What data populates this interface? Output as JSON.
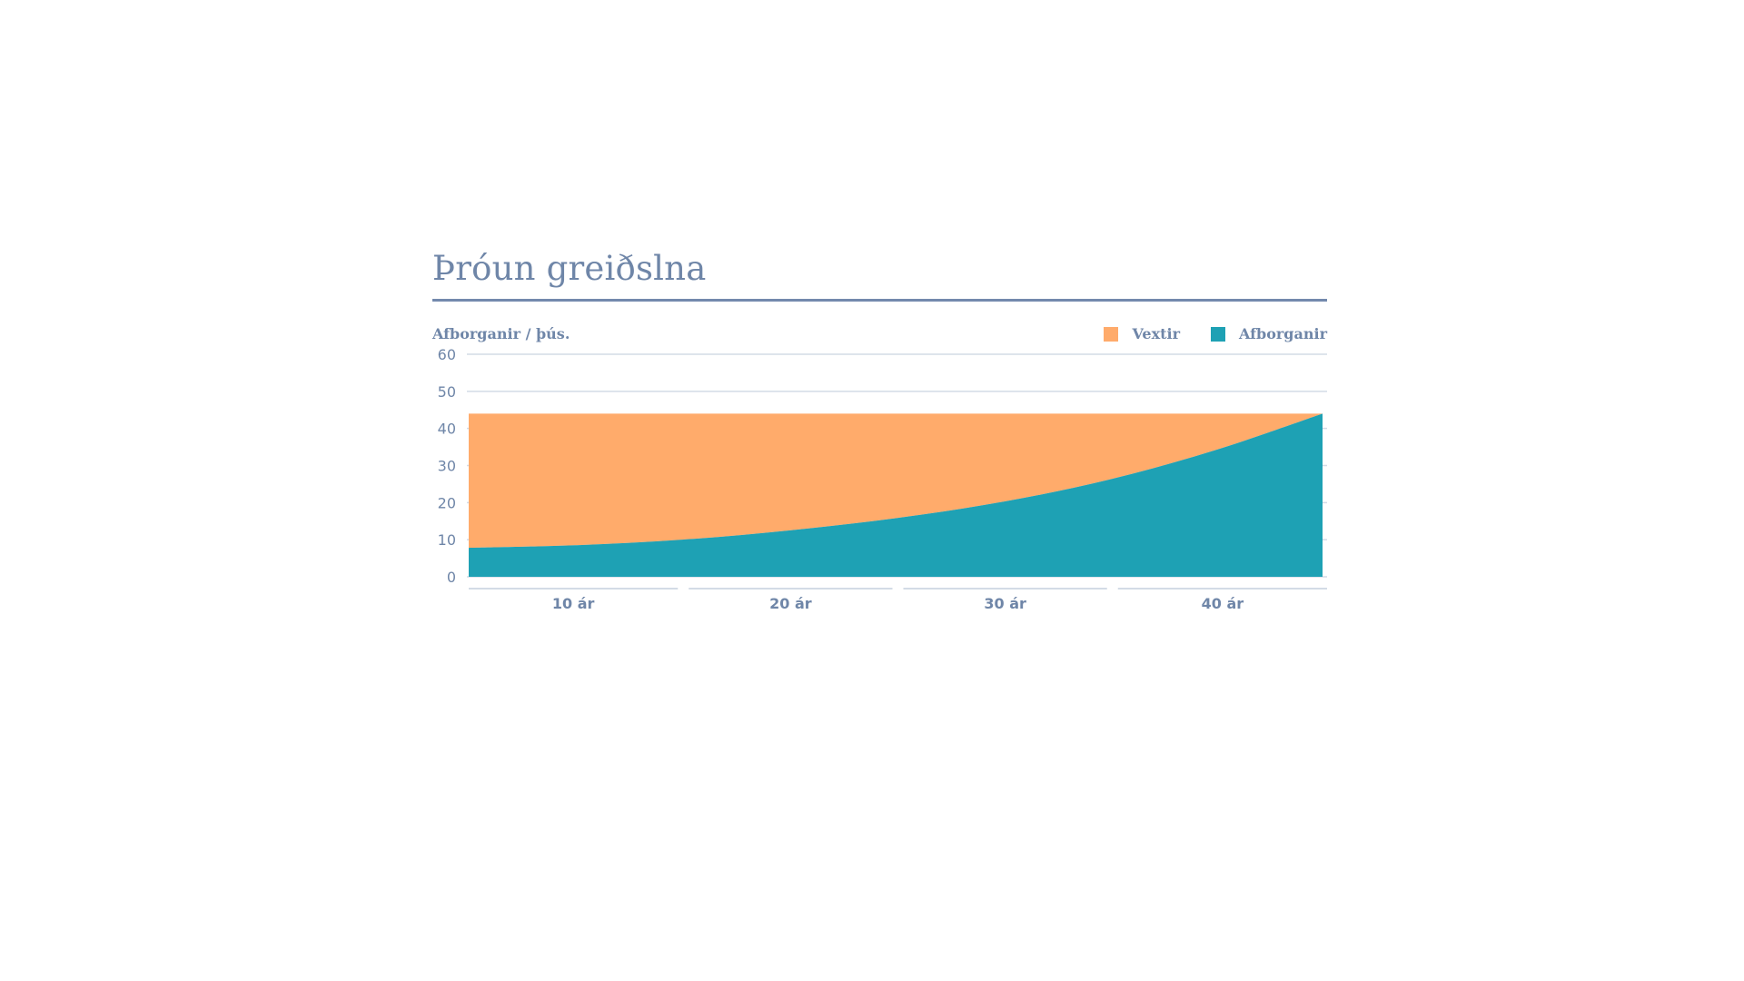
{
  "chart_data": {
    "type": "area",
    "stacked": true,
    "title": "Þróun greiðslna",
    "ylabel": "Afborganir / þús.",
    "xlabel": "",
    "ylim": [
      0,
      60
    ],
    "yticks": [
      0,
      10,
      20,
      30,
      40,
      50,
      60
    ],
    "xlim": [
      0,
      40
    ],
    "x_categories": [
      "10 ár",
      "20 ár",
      "30 ár",
      "40 ár"
    ],
    "legend_position": "top-right",
    "grid": true,
    "total_payment": 44,
    "series": [
      {
        "name": "Afborganir",
        "color": "#1ea1b4",
        "x": [
          0,
          5,
          10,
          15,
          20,
          25,
          30,
          35,
          40
        ],
        "values": [
          7.8,
          8.5,
          10.0,
          12.5,
          15.8,
          20.2,
          26.2,
          34.2,
          44.0
        ]
      },
      {
        "name": "Vextir",
        "color": "#ffab6b",
        "x": [
          0,
          5,
          10,
          15,
          20,
          25,
          30,
          35,
          40
        ],
        "values": [
          36.2,
          35.5,
          34.0,
          31.5,
          28.2,
          23.8,
          17.8,
          9.8,
          0.0
        ]
      }
    ],
    "legend": [
      {
        "name": "Vextir",
        "color": "#ffab6b"
      },
      {
        "name": "Afborganir",
        "color": "#1ea1b4"
      }
    ]
  }
}
